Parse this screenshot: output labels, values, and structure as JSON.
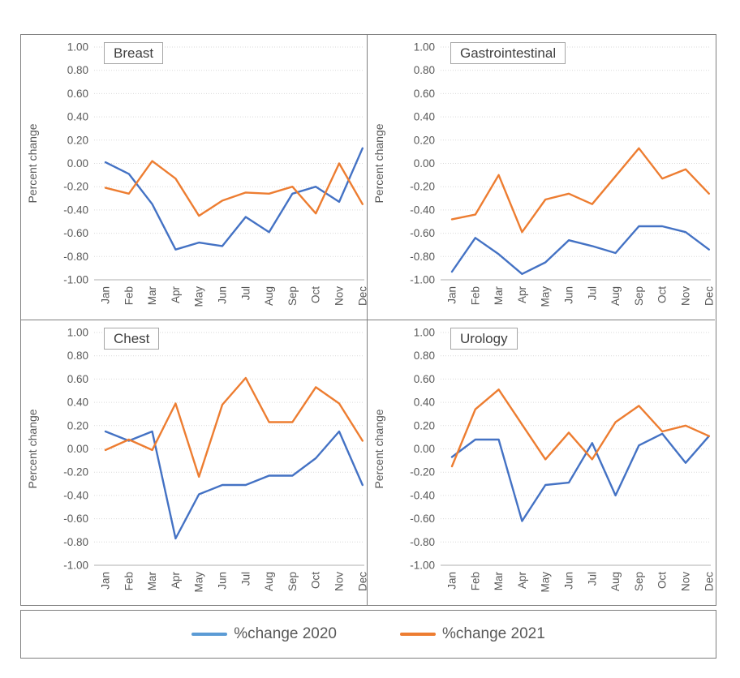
{
  "colors": {
    "series_2020": "#4472C4",
    "series_2021": "#ED7D31",
    "legend_swatch_2020": "#5B9BD5",
    "legend_swatch_2021": "#ED7D31",
    "tick_text": "#595959",
    "title_text": "#404040",
    "gridline": "#D9D9D9",
    "axis_line": "#BFBFBF",
    "panel_border": "#7F7F7F"
  },
  "axes": {
    "months": [
      "Jan",
      "Feb",
      "Mar",
      "Apr",
      "May",
      "Jun",
      "Jul",
      "Aug",
      "Sep",
      "Oct",
      "Nov",
      "Dec"
    ],
    "yticks": [
      {
        "label": "1.00",
        "value": 1.0
      },
      {
        "label": "0.80",
        "value": 0.8
      },
      {
        "label": "0.60",
        "value": 0.6
      },
      {
        "label": "0.40",
        "value": 0.4
      },
      {
        "label": "0.20",
        "value": 0.2
      },
      {
        "label": "0.00",
        "value": 0.0
      },
      {
        "label": "-0.20",
        "value": -0.2
      },
      {
        "label": "-0.40",
        "value": -0.4
      },
      {
        "label": "-0.60",
        "value": -0.6
      },
      {
        "label": "-0.80",
        "value": -0.8
      },
      {
        "label": "-1.00",
        "value": -1.0
      }
    ],
    "ylabel": "Percent change"
  },
  "legend": {
    "items": [
      {
        "label": "%change 2020",
        "color": "#5B9BD5"
      },
      {
        "label": "%change 2021",
        "color": "#ED7D31"
      }
    ]
  },
  "chart_data": [
    {
      "type": "line",
      "title": "Breast",
      "xlabel": "",
      "ylabel": "Percent change",
      "ylim": [
        -1.0,
        1.0
      ],
      "grid": true,
      "categories": [
        "Jan",
        "Feb",
        "Mar",
        "Apr",
        "May",
        "Jun",
        "Jul",
        "Aug",
        "Sep",
        "Oct",
        "Nov",
        "Dec"
      ],
      "series": [
        {
          "name": "%change 2020",
          "color": "#4472C4",
          "values": [
            0.01,
            -0.09,
            -0.35,
            -0.74,
            -0.68,
            -0.71,
            -0.46,
            -0.59,
            -0.26,
            -0.2,
            -0.33,
            0.13
          ]
        },
        {
          "name": "%change 2021",
          "color": "#ED7D31",
          "values": [
            -0.21,
            -0.26,
            0.02,
            -0.13,
            -0.45,
            -0.32,
            -0.25,
            -0.26,
            -0.2,
            -0.43,
            0.0,
            -0.35
          ]
        }
      ]
    },
    {
      "type": "line",
      "title": "Gastrointestinal",
      "xlabel": "",
      "ylabel": "Percent change",
      "ylim": [
        -1.0,
        1.0
      ],
      "grid": true,
      "categories": [
        "Jan",
        "Feb",
        "Mar",
        "Apr",
        "May",
        "Jun",
        "Jul",
        "Aug",
        "Sep",
        "Oct",
        "Nov",
        "Dec"
      ],
      "series": [
        {
          "name": "%change 2020",
          "color": "#4472C4",
          "values": [
            -0.93,
            -0.64,
            -0.78,
            -0.95,
            -0.85,
            -0.66,
            -0.71,
            -0.77,
            -0.54,
            -0.54,
            -0.59,
            -0.74
          ]
        },
        {
          "name": "%change 2021",
          "color": "#ED7D31",
          "values": [
            -0.48,
            -0.44,
            -0.1,
            -0.59,
            -0.31,
            -0.26,
            -0.35,
            -0.11,
            0.13,
            -0.13,
            -0.05,
            -0.26
          ]
        }
      ]
    },
    {
      "type": "line",
      "title": "Chest",
      "xlabel": "",
      "ylabel": "Percent change",
      "ylim": [
        -1.0,
        1.0
      ],
      "grid": true,
      "categories": [
        "Jan",
        "Feb",
        "Mar",
        "Apr",
        "May",
        "Jun",
        "Jul",
        "Aug",
        "Sep",
        "Oct",
        "Nov",
        "Dec"
      ],
      "series": [
        {
          "name": "%change 2020",
          "color": "#4472C4",
          "values": [
            0.15,
            0.07,
            0.15,
            -0.77,
            -0.39,
            -0.31,
            -0.31,
            -0.23,
            -0.23,
            -0.08,
            0.15,
            -0.31
          ]
        },
        {
          "name": "%change 2021",
          "color": "#ED7D31",
          "values": [
            -0.01,
            0.08,
            -0.01,
            0.39,
            -0.24,
            0.38,
            0.61,
            0.23,
            0.23,
            0.53,
            0.39,
            0.07
          ]
        }
      ]
    },
    {
      "type": "line",
      "title": "Urology",
      "xlabel": "",
      "ylabel": "Percent change",
      "ylim": [
        -1.0,
        1.0
      ],
      "grid": true,
      "categories": [
        "Jan",
        "Feb",
        "Mar",
        "Apr",
        "May",
        "Jun",
        "Jul",
        "Aug",
        "Sep",
        "Oct",
        "Nov",
        "Dec"
      ],
      "series": [
        {
          "name": "%change 2020",
          "color": "#4472C4",
          "values": [
            -0.07,
            0.08,
            0.08,
            -0.62,
            -0.31,
            -0.29,
            0.05,
            -0.4,
            0.03,
            0.13,
            -0.12,
            0.11
          ]
        },
        {
          "name": "%change 2021",
          "color": "#ED7D31",
          "values": [
            -0.15,
            0.34,
            0.51,
            0.21,
            -0.09,
            0.14,
            -0.09,
            0.23,
            0.37,
            0.15,
            0.2,
            0.11
          ]
        }
      ]
    }
  ]
}
